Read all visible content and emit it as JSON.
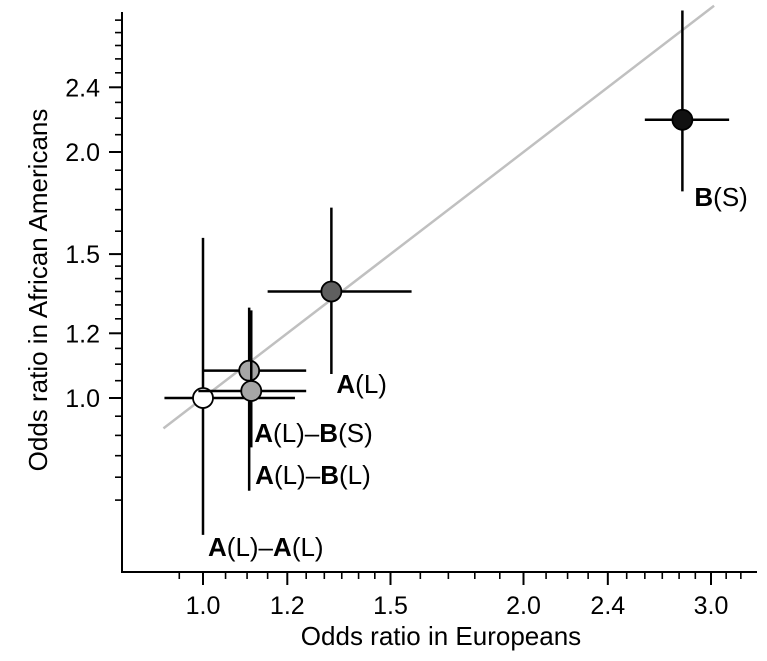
{
  "chart_data": {
    "type": "scatter",
    "title": "",
    "xlabel": "Odds ratio in Europeans",
    "ylabel": "Odds ratio in African Americans",
    "scale": "log",
    "xlim": [
      0.918,
      3.3
    ],
    "ylim": [
      0.71,
      3.3
    ],
    "x_ticks": [
      {
        "value": 1.0,
        "label": "1.0"
      },
      {
        "value": 1.2,
        "label": "1.2"
      },
      {
        "value": 1.5,
        "label": "1.5"
      },
      {
        "value": 2.0,
        "label": "2.0"
      },
      {
        "value": 2.4,
        "label": "2.4"
      },
      {
        "value": 3.0,
        "label": "3.0"
      }
    ],
    "y_ticks": [
      {
        "value": 1.0,
        "label": "1.0"
      },
      {
        "value": 1.2,
        "label": "1.2"
      },
      {
        "value": 1.5,
        "label": "1.5"
      },
      {
        "value": 2.0,
        "label": "2.0"
      },
      {
        "value": 2.4,
        "label": "2.4"
      }
    ],
    "x_minor_ticks": [
      0.95,
      1.05,
      1.1,
      1.15,
      1.25,
      1.3,
      1.35,
      1.4,
      1.45,
      1.6,
      1.7,
      1.8,
      1.9,
      2.1,
      2.2,
      2.3,
      2.5,
      2.6,
      2.7,
      2.8,
      2.9,
      3.1,
      3.2
    ],
    "y_minor_ticks": [
      0.75,
      0.8,
      0.85,
      0.9,
      0.95,
      1.05,
      1.1,
      1.15,
      1.25,
      1.3,
      1.35,
      1.4,
      1.45,
      1.6,
      1.7,
      1.8,
      1.9,
      2.1,
      2.2,
      2.3,
      2.5,
      2.6,
      2.7,
      2.8,
      2.9,
      3.0,
      3.1,
      3.2
    ],
    "reference_line": {
      "type": "identity",
      "color": "#c0c0c0"
    },
    "points": [
      {
        "label_bold_1": "A",
        "label_rest_1": "(L)–",
        "label_bold_2": "A",
        "label_rest_2": "(L)",
        "x": 1.0,
        "y": 1.0,
        "x_ci": [
          0.92,
          1.22
        ],
        "y_ci": [
          0.68,
          1.57
        ],
        "fill": "#ffffff",
        "label_anchor": "bottom-right"
      },
      {
        "label_bold_1": "A",
        "label_rest_1": "(L)–",
        "label_bold_2": "B",
        "label_rest_2": "(L)",
        "x": 1.105,
        "y": 1.08,
        "x_ci": [
          1.0,
          1.25
        ],
        "y_ci": [
          0.77,
          1.29
        ],
        "fill": "#a6a6a6",
        "label_anchor": "below"
      },
      {
        "label_bold_1": "A",
        "label_rest_1": "(L)–",
        "label_bold_2": "B",
        "label_rest_2": "(S)",
        "x": 1.11,
        "y": 1.02,
        "x_ci": [
          0.99,
          1.25
        ],
        "y_ci": [
          0.87,
          1.28
        ],
        "fill": "#a6a6a6",
        "label_anchor": "below"
      },
      {
        "label_bold_1": "A",
        "label_rest_1": "(L)",
        "label_bold_2": "",
        "label_rest_2": "",
        "x": 1.32,
        "y": 1.35,
        "x_ci": [
          1.15,
          1.57
        ],
        "y_ci": [
          1.07,
          1.71
        ],
        "fill": "#5f5f5f",
        "label_anchor": "below"
      },
      {
        "label_bold_1": "B",
        "label_rest_1": "(S)",
        "label_bold_2": "",
        "label_rest_2": "",
        "x": 2.82,
        "y": 2.19,
        "x_ci": [
          2.6,
          3.12
        ],
        "y_ci": [
          1.79,
          2.98
        ],
        "fill": "#111111",
        "label_anchor": "below"
      }
    ],
    "grid": false,
    "legend": "none"
  }
}
